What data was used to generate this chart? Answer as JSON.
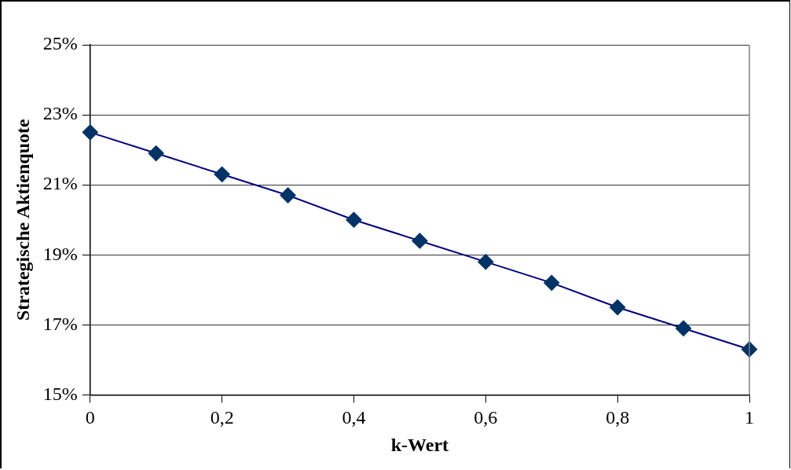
{
  "chart_data": {
    "type": "line",
    "xlabel": "k-Wert",
    "ylabel": "Strategische Aktienquote",
    "x": [
      0,
      0.1,
      0.2,
      0.3,
      0.4,
      0.5,
      0.6,
      0.7,
      0.8,
      0.9,
      1
    ],
    "series": [
      {
        "color": "#003366",
        "values": [
          22.5,
          21.9,
          21.3,
          20.7,
          20.0,
          19.4,
          18.8,
          18.2,
          17.5,
          16.9,
          16.3
        ]
      }
    ],
    "xlim": [
      0,
      1
    ],
    "xticks": [
      0,
      {
        "value": 0.2,
        "label": "0,2"
      },
      {
        "value": 0.4,
        "label": "0,4"
      },
      {
        "value": 0.6,
        "label": "0,6"
      },
      {
        "value": 0.8,
        "label": "0,8"
      },
      1
    ],
    "ylim": [
      15,
      25
    ],
    "yticks": [
      {
        "value": 15,
        "label": "15%"
      },
      {
        "value": 17,
        "label": "17%"
      },
      {
        "value": 19,
        "label": "19%"
      },
      {
        "value": 21,
        "label": "21%"
      },
      {
        "value": 23,
        "label": "23%"
      },
      {
        "value": 25,
        "label": "25%"
      }
    ],
    "grid": "y",
    "legend": false,
    "marker": "diamond",
    "line_style": "solid"
  }
}
